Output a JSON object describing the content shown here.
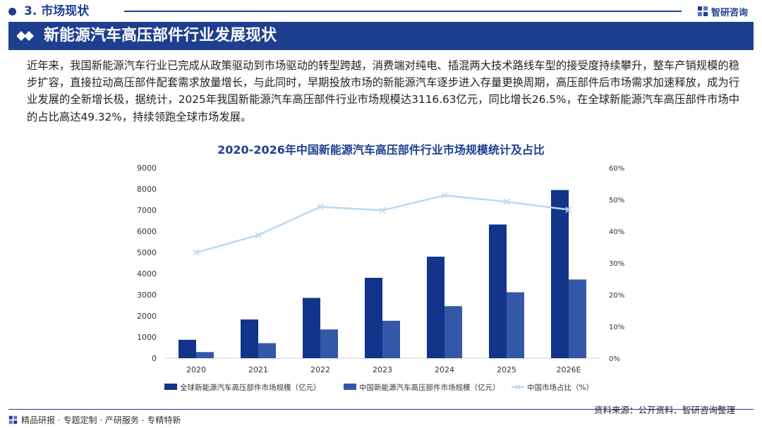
{
  "header": {
    "section_title": "3. 市场现状",
    "brand_name": "智研咨询"
  },
  "banner": {
    "title": "新能源汽车高压部件行业发展现状"
  },
  "paragraph": "近年来，我国新能源汽车行业已完成从政策驱动到市场驱动的转型跨越，消费端对纯电、插混两大技术路线车型的接受度持续攀升，整车产销规模的稳步扩容，直接拉动高压部件配套需求放量增长，与此同时，早期投放市场的新能源汽车逐步进入存量更换周期，高压部件后市场需求加速释放，成为行业发展的全新增长极，据统计，2025年我国新能源汽车高压部件行业市场规模达3116.63亿元，同比增长26.5%，在全球新能源汽车高压部件市场中的占比高达49.32%，持续领跑全球市场发展。",
  "chart_data": {
    "type": "bar",
    "title": "2020-2026年中国新能源汽车高压部件行业市场规模统计及占比",
    "categories": [
      "2020",
      "2021",
      "2022",
      "2023",
      "2024",
      "2025",
      "2026E"
    ],
    "series": [
      {
        "name": "全球新能源汽车高压部件市场规模（亿元）",
        "type": "bar",
        "axis": "left",
        "color": "#12348a",
        "values": [
          870,
          1830,
          2850,
          3800,
          4800,
          6320,
          7950
        ]
      },
      {
        "name": "中国新能源汽车高压部件市场规模（亿元）",
        "type": "bar",
        "axis": "left",
        "color": "#3458a8",
        "values": [
          290,
          710,
          1360,
          1770,
          2460,
          3116.63,
          3720
        ]
      },
      {
        "name": "中国市场占比（%）",
        "type": "line",
        "axis": "right",
        "color": "#b8daf0",
        "values": [
          33.3,
          38.8,
          47.7,
          46.6,
          51.3,
          49.32,
          46.8
        ]
      }
    ],
    "ylim": [
      0,
      9000
    ],
    "yticks": [
      "0",
      "1000",
      "2000",
      "3000",
      "4000",
      "5000",
      "6000",
      "7000",
      "8000",
      "9000"
    ],
    "y2lim": [
      0,
      60
    ],
    "y2ticks": [
      "0%",
      "10%",
      "20%",
      "30%",
      "40%",
      "50%",
      "60%"
    ],
    "legend": "bottom",
    "grid": false
  },
  "source_text": "资料来源：公开资料、智研咨询整理",
  "footer_text": "精品研报 · 专题定制 · 产研服务 · 专精特新"
}
